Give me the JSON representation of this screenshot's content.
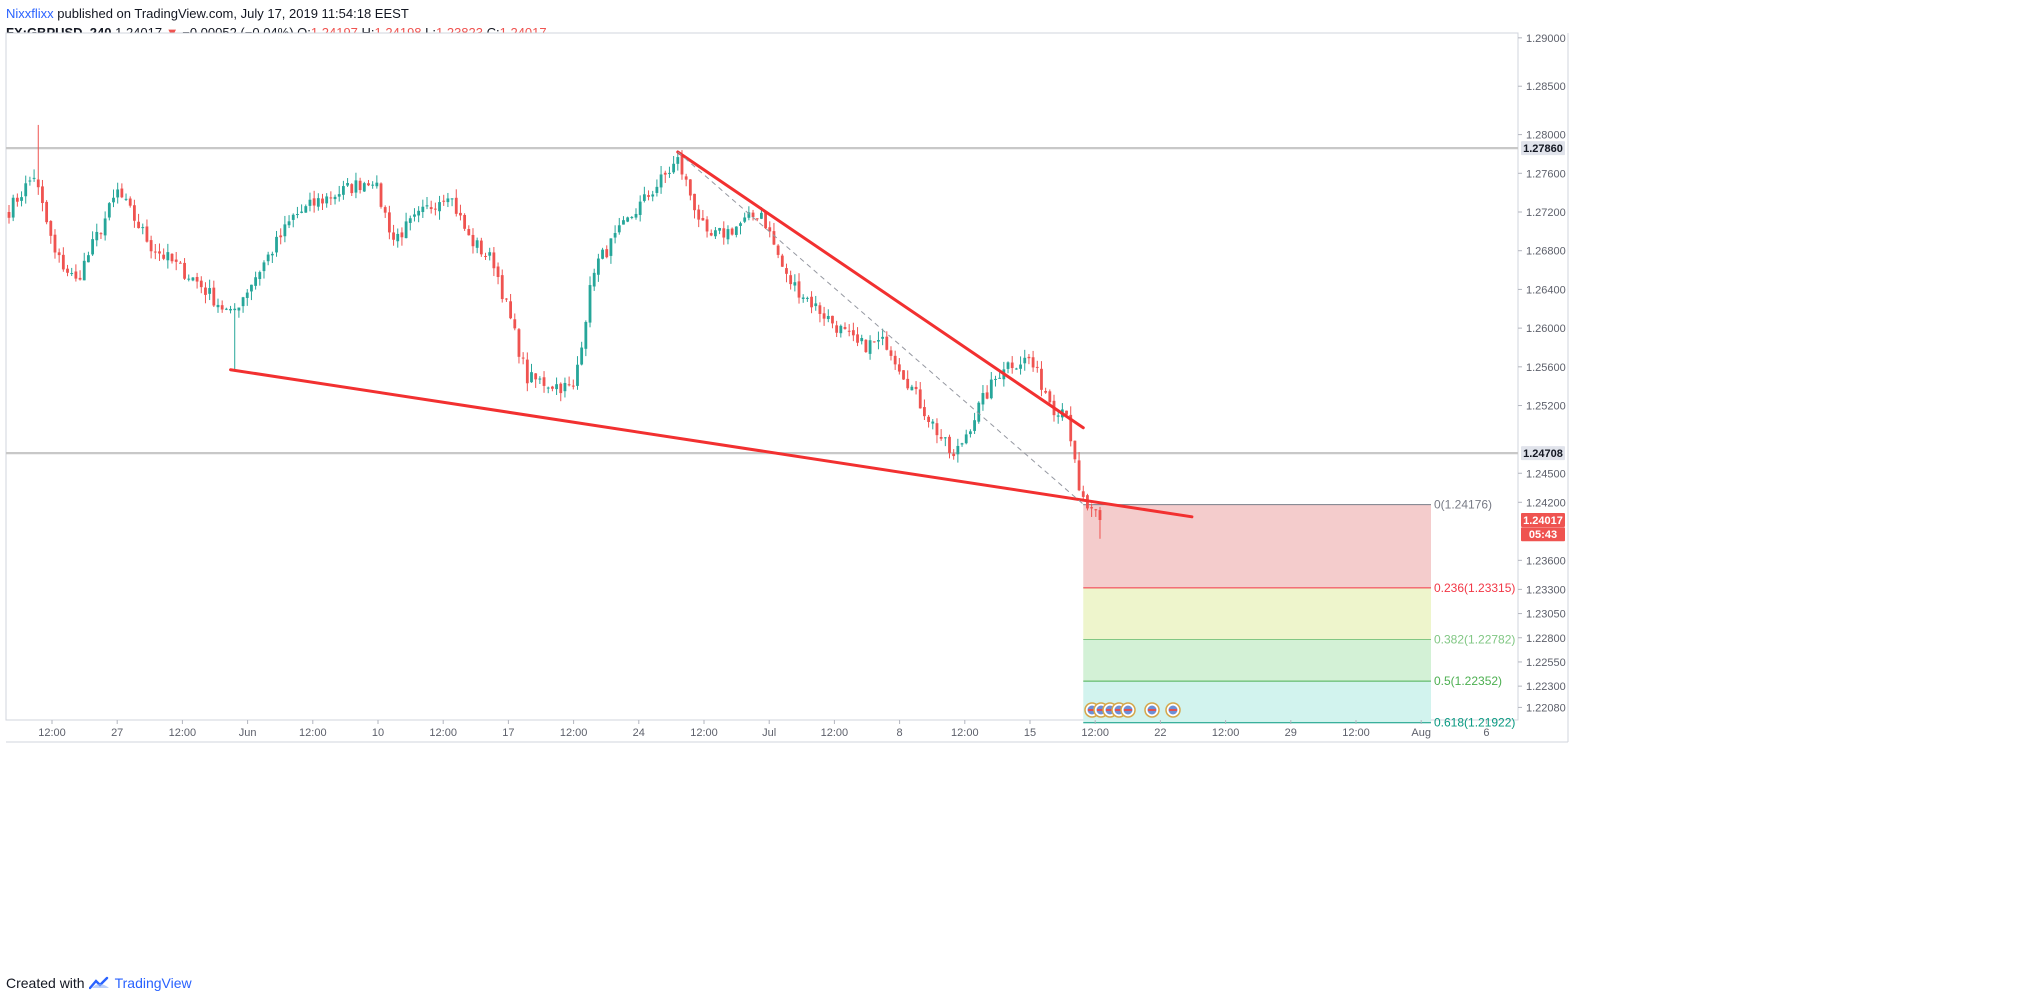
{
  "header": {
    "author": "Nixxflixx",
    "published": " published on TradingView.com, July 17, 2019 11:54:18 EEST",
    "symbol": "FX:GBPUSD, 240",
    "last": "1.24017",
    "arrow": "▼",
    "change": "−0.00052 (−0.04%)",
    "o_label": "O:",
    "o_value": "1.24197",
    "h_label": "H:",
    "h_value": "1.24198",
    "l_label": "L:",
    "l_value": "1.23823",
    "c_label": "C:",
    "c_value": "1.24017"
  },
  "footer": {
    "created": "Created with",
    "brand": "TradingView"
  },
  "colors": {
    "up": "#26a69a",
    "down": "#ef5350",
    "trend": "#f23030",
    "fib_red": "#f4cccc",
    "fib_yellow": "#eef5cc",
    "fib_green": "#d3f1d6",
    "fib_teal": "#d2f3ee"
  },
  "chart_data": {
    "type": "candlestick",
    "symbol": "FX:GBPUSD",
    "timeframe": "240",
    "ylim": [
      1.2195,
      1.2905
    ],
    "y_ticks": [
      "1.29000",
      "1.28500",
      "1.28000",
      "1.27600",
      "1.27200",
      "1.26800",
      "1.26400",
      "1.26000",
      "1.25600",
      "1.25200",
      "1.24500",
      "1.24200",
      "1.23600",
      "1.23300",
      "1.23050",
      "1.22800",
      "1.22550",
      "1.22300",
      "1.22080"
    ],
    "x_ticks": [
      "12:00",
      "27",
      "12:00",
      "Jun",
      "12:00",
      "10",
      "12:00",
      "17",
      "12:00",
      "24",
      "12:00",
      "Jul",
      "12:00",
      "8",
      "12:00",
      "15",
      "12:00",
      "22",
      "12:00",
      "29",
      "12:00",
      "Aug",
      "6"
    ],
    "price_labels": [
      {
        "value": 1.2786,
        "text": "1.27860",
        "style": "grey"
      },
      {
        "value": 1.24708,
        "text": "1.24708",
        "style": "grey"
      },
      {
        "value": 1.24017,
        "text": "1.24017",
        "style": "red"
      },
      {
        "value": 1.2387,
        "text": "05:43",
        "style": "red"
      }
    ],
    "horizontal_lines": [
      1.2786,
      1.24708
    ],
    "fib_levels": [
      {
        "ratio": "0",
        "value": 1.24176,
        "label": "0(1.24176)",
        "color": "#787b86"
      },
      {
        "ratio": "0.236",
        "value": 1.23315,
        "label": "0.236(1.23315)",
        "color": "#f23645"
      },
      {
        "ratio": "0.382",
        "value": 1.22782,
        "label": "0.382(1.22782)",
        "color": "#81c784"
      },
      {
        "ratio": "0.5",
        "value": 1.22352,
        "label": "0.5(1.22352)",
        "color": "#4caf50"
      },
      {
        "ratio": "0.618",
        "value": 1.21922,
        "label": "0.618(1.21922)",
        "color": "#089981"
      }
    ],
    "trendlines": [
      {
        "name": "upper",
        "from": {
          "bar": 160,
          "price": 1.2782
        },
        "to": {
          "bar": 257,
          "price": 1.2497
        }
      },
      {
        "name": "lower",
        "from": {
          "bar": 53,
          "price": 1.2557
        },
        "to": {
          "bar": 283,
          "price": 1.2405
        }
      }
    ],
    "dashed_line": {
      "from": {
        "bar": 160,
        "price": 1.2782
      },
      "to": {
        "bar": 257,
        "price": 1.2418
      }
    },
    "anchors": [
      {
        "bar": 0,
        "price": 1.2722
      },
      {
        "bar": 6,
        "price": 1.2758
      },
      {
        "bar": 11,
        "price": 1.2676
      },
      {
        "bar": 16,
        "price": 1.2648
      },
      {
        "bar": 26,
        "price": 1.2741
      },
      {
        "bar": 34,
        "price": 1.2685
      },
      {
        "bar": 45,
        "price": 1.2648
      },
      {
        "bar": 53,
        "price": 1.2613
      },
      {
        "bar": 68,
        "price": 1.2715
      },
      {
        "bar": 74,
        "price": 1.2731
      },
      {
        "bar": 87,
        "price": 1.2755
      },
      {
        "bar": 92,
        "price": 1.2692
      },
      {
        "bar": 105,
        "price": 1.2742
      },
      {
        "bar": 110,
        "price": 1.2693
      },
      {
        "bar": 116,
        "price": 1.2668
      },
      {
        "bar": 124,
        "price": 1.2548
      },
      {
        "bar": 135,
        "price": 1.2537
      },
      {
        "bar": 140,
        "price": 1.2663
      },
      {
        "bar": 150,
        "price": 1.2722
      },
      {
        "bar": 160,
        "price": 1.2773
      },
      {
        "bar": 167,
        "price": 1.2692
      },
      {
        "bar": 172,
        "price": 1.27
      },
      {
        "bar": 180,
        "price": 1.272
      },
      {
        "bar": 186,
        "price": 1.2652
      },
      {
        "bar": 193,
        "price": 1.2622
      },
      {
        "bar": 203,
        "price": 1.2582
      },
      {
        "bar": 210,
        "price": 1.2585
      },
      {
        "bar": 218,
        "price": 1.2522
      },
      {
        "bar": 226,
        "price": 1.2465
      },
      {
        "bar": 232,
        "price": 1.2518
      },
      {
        "bar": 238,
        "price": 1.2562
      },
      {
        "bar": 244,
        "price": 1.2568
      },
      {
        "bar": 250,
        "price": 1.2518
      },
      {
        "bar": 253,
        "price": 1.2517
      },
      {
        "bar": 256,
        "price": 1.2428
      },
      {
        "bar": 259,
        "price": 1.2408
      },
      {
        "bar": 261,
        "price": 1.24017
      }
    ],
    "bar_count": 262,
    "bar_span": 360,
    "wick_extremes": [
      {
        "bar": 7,
        "price": 1.281,
        "kind": "high"
      },
      {
        "bar": 54,
        "price": 1.2557,
        "kind": "low"
      },
      {
        "bar": 160,
        "price": 1.2782,
        "kind": "high"
      },
      {
        "bar": 261,
        "price": 1.23823,
        "kind": "low"
      }
    ],
    "grid": true,
    "legend": "none"
  }
}
